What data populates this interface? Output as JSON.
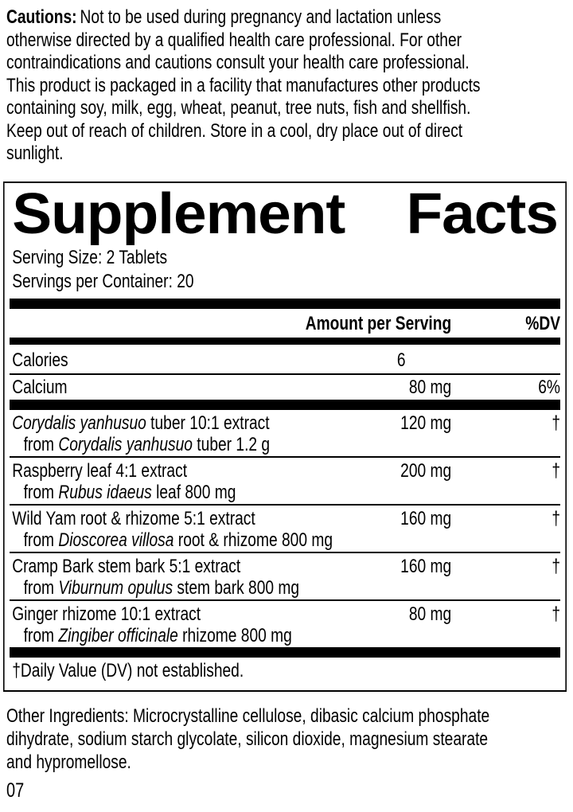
{
  "colors": {
    "text": "#000000",
    "background": "#ffffff"
  },
  "cautions": {
    "label": "Cautions:",
    "text": "Not to be used during pregnancy and lactation unless\notherwise directed by a qualified health care professional. For other\ncontraindications and cautions consult your health care professional.\nThis product is packaged in a facility that manufactures other products\ncontaining soy, milk, egg, wheat, peanut, tree nuts, fish and shellfish.\nKeep out of reach of children. Store in a cool, dry place out of direct\nsunlight."
  },
  "panel": {
    "title_left": "Supplement",
    "title_right": "Facts",
    "serving_size": "Serving Size: 2 Tablets",
    "servings_per_container": "Servings per Container: 20",
    "header": {
      "amount": "Amount per Serving",
      "dv": "%DV"
    },
    "basic_rows": [
      {
        "name": "Calories",
        "amount": "6",
        "dv": ""
      },
      {
        "name": "Calcium",
        "amount": "80 mg",
        "dv": "6%"
      }
    ],
    "botanical_rows": [
      {
        "name_italic": "Corydalis yanhusuo",
        "name_rest": " tuber 10:1 extract",
        "sub_prefix": "from ",
        "sub_italic": "Corydalis yanhusuo",
        "sub_rest": " tuber 1.2 g",
        "amount": "120 mg",
        "dv": "†"
      },
      {
        "name_italic": "",
        "name_rest": "Raspberry leaf 4:1 extract",
        "sub_prefix": "from ",
        "sub_italic": "Rubus idaeus",
        "sub_rest": " leaf 800 mg",
        "amount": "200 mg",
        "dv": "†"
      },
      {
        "name_italic": "",
        "name_rest": "Wild Yam root & rhizome 5:1 extract",
        "sub_prefix": "from ",
        "sub_italic": "Dioscorea villosa",
        "sub_rest": " root & rhizome 800 mg",
        "amount": "160 mg",
        "dv": "†"
      },
      {
        "name_italic": "",
        "name_rest": "Cramp Bark stem bark 5:1 extract",
        "sub_prefix": "from ",
        "sub_italic": "Viburnum opulus",
        "sub_rest": " stem bark 800 mg",
        "amount": "160 mg",
        "dv": "†"
      },
      {
        "name_italic": "",
        "name_rest": "Ginger rhizome 10:1 extract",
        "sub_prefix": "from ",
        "sub_italic": "Zingiber officinale",
        "sub_rest": " rhizome 800 mg",
        "amount": "80 mg",
        "dv": "†"
      }
    ],
    "footnote": "†Daily Value (DV) not established."
  },
  "other_ingredients": "Other Ingredients: Microcrystalline cellulose, dibasic calcium phosphate\ndihydrate, sodium starch glycolate, silicon dioxide, magnesium stearate\nand hypromellose.",
  "page_code": "07"
}
